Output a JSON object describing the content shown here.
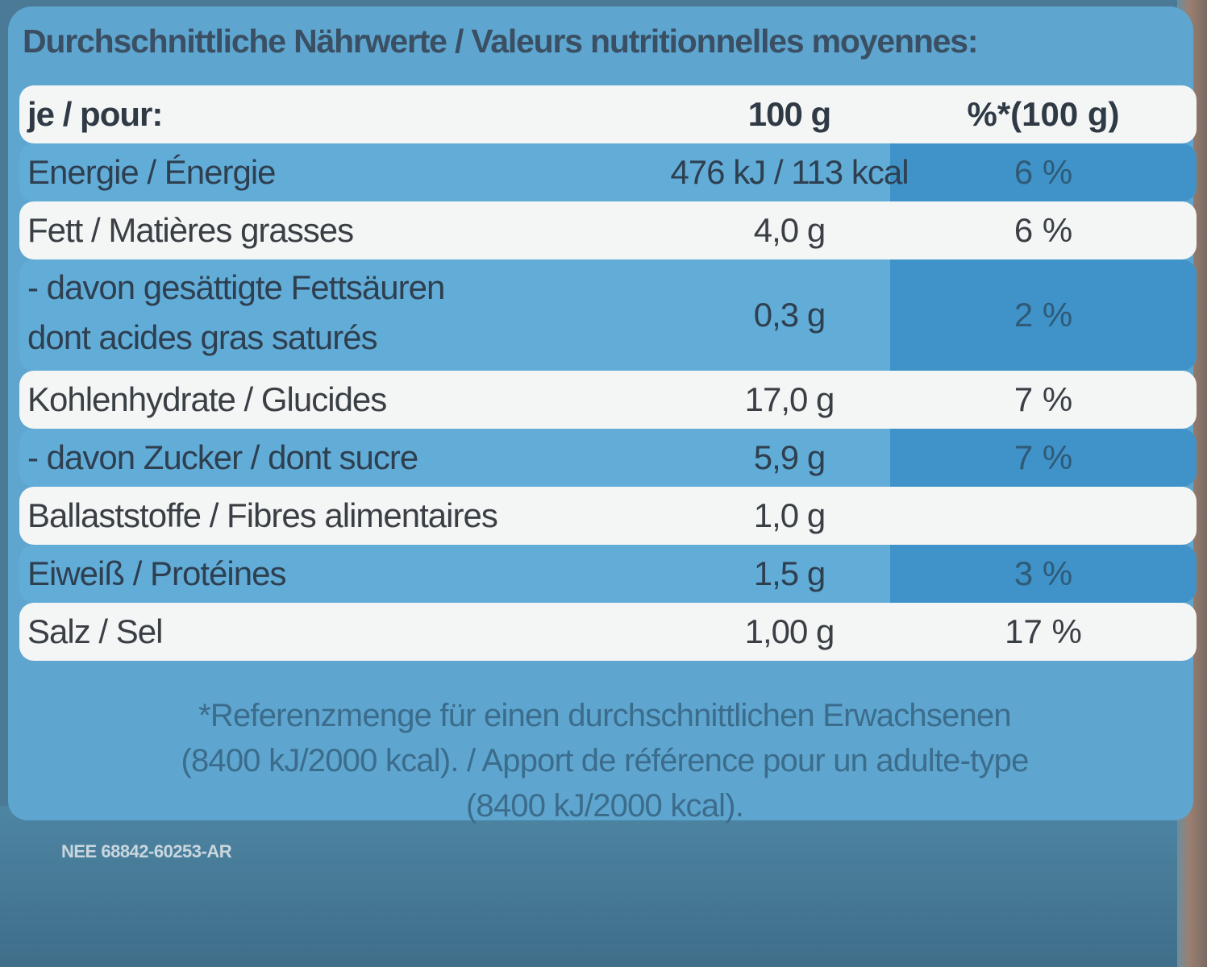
{
  "title": "Durchschnittliche Nährwerte / Valeurs nutritionnelles moyennes:",
  "header": {
    "label": "je / pour:",
    "col_100g": "100 g",
    "col_pct": "%*(100 g)"
  },
  "rows": [
    {
      "name": "Energie / Énergie",
      "per_100g": "476 kJ / 113 kcal",
      "pct": "6 %"
    },
    {
      "name": "Fett / Matières grasses",
      "per_100g": "4,0 g",
      "pct": "6 %"
    },
    {
      "name_line1": "- davon gesättigte Fettsäuren",
      "name_line2": "dont acides gras saturés",
      "per_100g": "0,3 g",
      "pct": "2 %"
    },
    {
      "name": "Kohlenhydrate / Glucides",
      "per_100g": "17,0 g",
      "pct": "7 %"
    },
    {
      "name": "- davon Zucker / dont sucre",
      "per_100g": "5,9 g",
      "pct": "7 %"
    },
    {
      "name": "Ballaststoffe / Fibres alimentaires",
      "per_100g": "1,0 g",
      "pct": ""
    },
    {
      "name": "Eiweiß / Protéines",
      "per_100g": "1,5 g",
      "pct": "3 %"
    },
    {
      "name": "Salz / Sel",
      "per_100g": "1,00 g",
      "pct": "17 %"
    }
  ],
  "footnote": {
    "line1": "*Referenzmenge für einen durchschnittlichen Erwachsenen",
    "line2": "(8400 kJ/2000 kcal). / Apport de référence pour un adulte-type",
    "line3": "(8400 kJ/2000 kcal)."
  },
  "code": "NEE 68842-60253-AR"
}
